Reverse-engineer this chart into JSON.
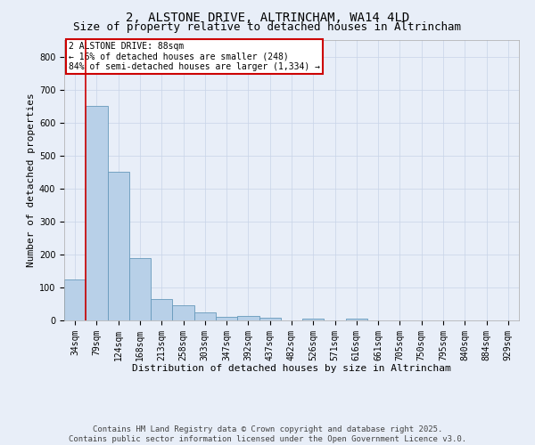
{
  "title1": "2, ALSTONE DRIVE, ALTRINCHAM, WA14 4LD",
  "title2": "Size of property relative to detached houses in Altrincham",
  "xlabel": "Distribution of detached houses by size in Altrincham",
  "ylabel": "Number of detached properties",
  "categories": [
    "34sqm",
    "79sqm",
    "124sqm",
    "168sqm",
    "213sqm",
    "258sqm",
    "303sqm",
    "347sqm",
    "392sqm",
    "437sqm",
    "482sqm",
    "526sqm",
    "571sqm",
    "616sqm",
    "661sqm",
    "705sqm",
    "750sqm",
    "795sqm",
    "840sqm",
    "884sqm",
    "929sqm"
  ],
  "values": [
    125,
    650,
    450,
    190,
    65,
    45,
    25,
    10,
    13,
    7,
    0,
    5,
    0,
    6,
    0,
    0,
    0,
    0,
    0,
    0,
    0
  ],
  "bar_color": "#b8d0e8",
  "bar_edge_color": "#6699bb",
  "vline_color": "#cc0000",
  "vline_x": 0.5,
  "ylim": [
    0,
    850
  ],
  "yticks": [
    0,
    100,
    200,
    300,
    400,
    500,
    600,
    700,
    800
  ],
  "annotation_text": "2 ALSTONE DRIVE: 88sqm\n← 16% of detached houses are smaller (248)\n84% of semi-detached houses are larger (1,334) →",
  "annotation_edge_color": "#cc0000",
  "footer1": "Contains HM Land Registry data © Crown copyright and database right 2025.",
  "footer2": "Contains public sector information licensed under the Open Government Licence v3.0.",
  "background_color": "#e8eef8",
  "grid_color": "#c8d4e8",
  "title_fontsize": 10,
  "subtitle_fontsize": 9,
  "axis_label_fontsize": 8,
  "tick_fontsize": 7,
  "annotation_fontsize": 7,
  "footer_fontsize": 6.5
}
